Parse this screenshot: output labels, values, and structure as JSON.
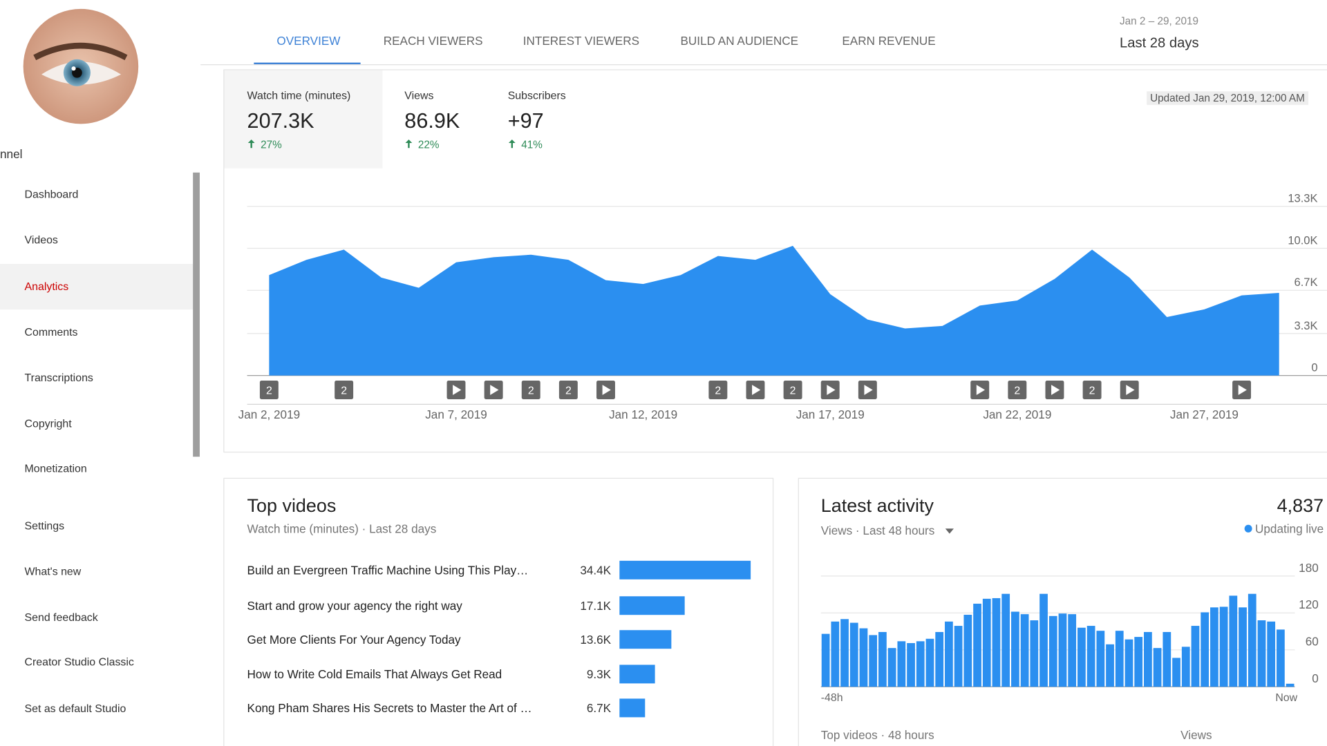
{
  "sidebar": {
    "channel_label": "nnel",
    "items": [
      "Dashboard",
      "Videos",
      "Analytics",
      "Comments",
      "Transcriptions",
      "Copyright",
      "Monetization",
      "Settings",
      "What's new",
      "Send feedback",
      "Creator Studio Classic",
      "Set as default Studio"
    ],
    "active_index": 2
  },
  "tabs": {
    "items": [
      "OVERVIEW",
      "REACH VIEWERS",
      "INTEREST VIEWERS",
      "BUILD AN AUDIENCE",
      "EARN REVENUE"
    ],
    "active_index": 0
  },
  "date_range": {
    "range": "Jan 2 – 29, 2019",
    "label": "Last 28 days"
  },
  "metrics": [
    {
      "label": "Watch time (minutes)",
      "value": "207.3K",
      "change": "27%"
    },
    {
      "label": "Views",
      "value": "86.9K",
      "change": "22%"
    },
    {
      "label": "Subscribers",
      "value": "+97",
      "change": "41%"
    }
  ],
  "updated": "Updated Jan 29, 2019, 12:00 AM",
  "watch_chart": {
    "type": "area",
    "categories": [
      "Jan 2, 2019",
      null,
      null,
      null,
      null,
      "Jan 7, 2019",
      null,
      null,
      null,
      null,
      "Jan 12, 2019",
      null,
      null,
      null,
      null,
      "Jan 17, 2019",
      null,
      null,
      null,
      null,
      "Jan 22, 2019",
      null,
      null,
      null,
      null,
      "Jan 27, 2019",
      null,
      null
    ],
    "values": [
      7900,
      9100,
      9900,
      7700,
      6900,
      8900,
      9300,
      9500,
      9100,
      7500,
      7200,
      7900,
      9400,
      9100,
      10200,
      6400,
      4400,
      3700,
      3900,
      5500,
      5900,
      7600,
      9900,
      7700,
      4600,
      5200,
      6300,
      6500
    ],
    "color": "#2b8ff0",
    "ylim": [
      0,
      13300
    ],
    "yticks": [
      0,
      {
        "value": 3300,
        "label": "3.3K"
      },
      {
        "value": 6700,
        "label": "6.7K"
      },
      {
        "value": 10000,
        "label": "10.0K"
      },
      {
        "value": 13300,
        "label": "13.3K"
      }
    ],
    "grid": true,
    "event_markers": [
      2,
      null,
      2,
      null,
      null,
      "video",
      "video",
      2,
      2,
      "video",
      null,
      null,
      2,
      "video",
      2,
      "video",
      "video",
      null,
      null,
      "video",
      2,
      "video",
      2,
      "video",
      null,
      null,
      "video",
      null
    ]
  },
  "top_videos": {
    "type": "bar",
    "title": "Top videos",
    "subtitle": "Watch time (minutes) · Last 28 days",
    "categories": [
      "Build an Evergreen Traffic Machine Using This Play…",
      "Start and grow your agency the right way",
      "Get More Clients For Your Agency Today",
      "How to Write Cold Emails That Always Get Read",
      "Kong Pham Shares His Secrets to Master the Art of …"
    ],
    "values": [
      34400,
      17100,
      13600,
      9300,
      6700
    ],
    "value_labels": [
      "34.4K",
      "17.1K",
      "13.6K",
      "9.3K",
      "6.7K"
    ],
    "color": "#2b8ff0"
  },
  "latest_activity": {
    "type": "bar",
    "title": "Latest activity",
    "total": "4,837",
    "subtitle": "Views · Last 48 hours",
    "status": "Updating live",
    "values": [
      86,
      106,
      110,
      104,
      95,
      84,
      89,
      63,
      74,
      71,
      74,
      78,
      89,
      106,
      99,
      117,
      135,
      143,
      144,
      151,
      122,
      118,
      108,
      151,
      115,
      119,
      118,
      96,
      99,
      91,
      69,
      91,
      77,
      81,
      89,
      63,
      89,
      47,
      65,
      99,
      121,
      129,
      130,
      148,
      129,
      151,
      108,
      106,
      93,
      5
    ],
    "color": "#2b8ff0",
    "ylim": [
      0,
      180
    ],
    "yticks": [
      0,
      60,
      120,
      180
    ],
    "grid": true,
    "x_labels": [
      "-48h",
      "Now"
    ],
    "footer": {
      "left": "Top videos · 48 hours",
      "right": "Views"
    }
  }
}
